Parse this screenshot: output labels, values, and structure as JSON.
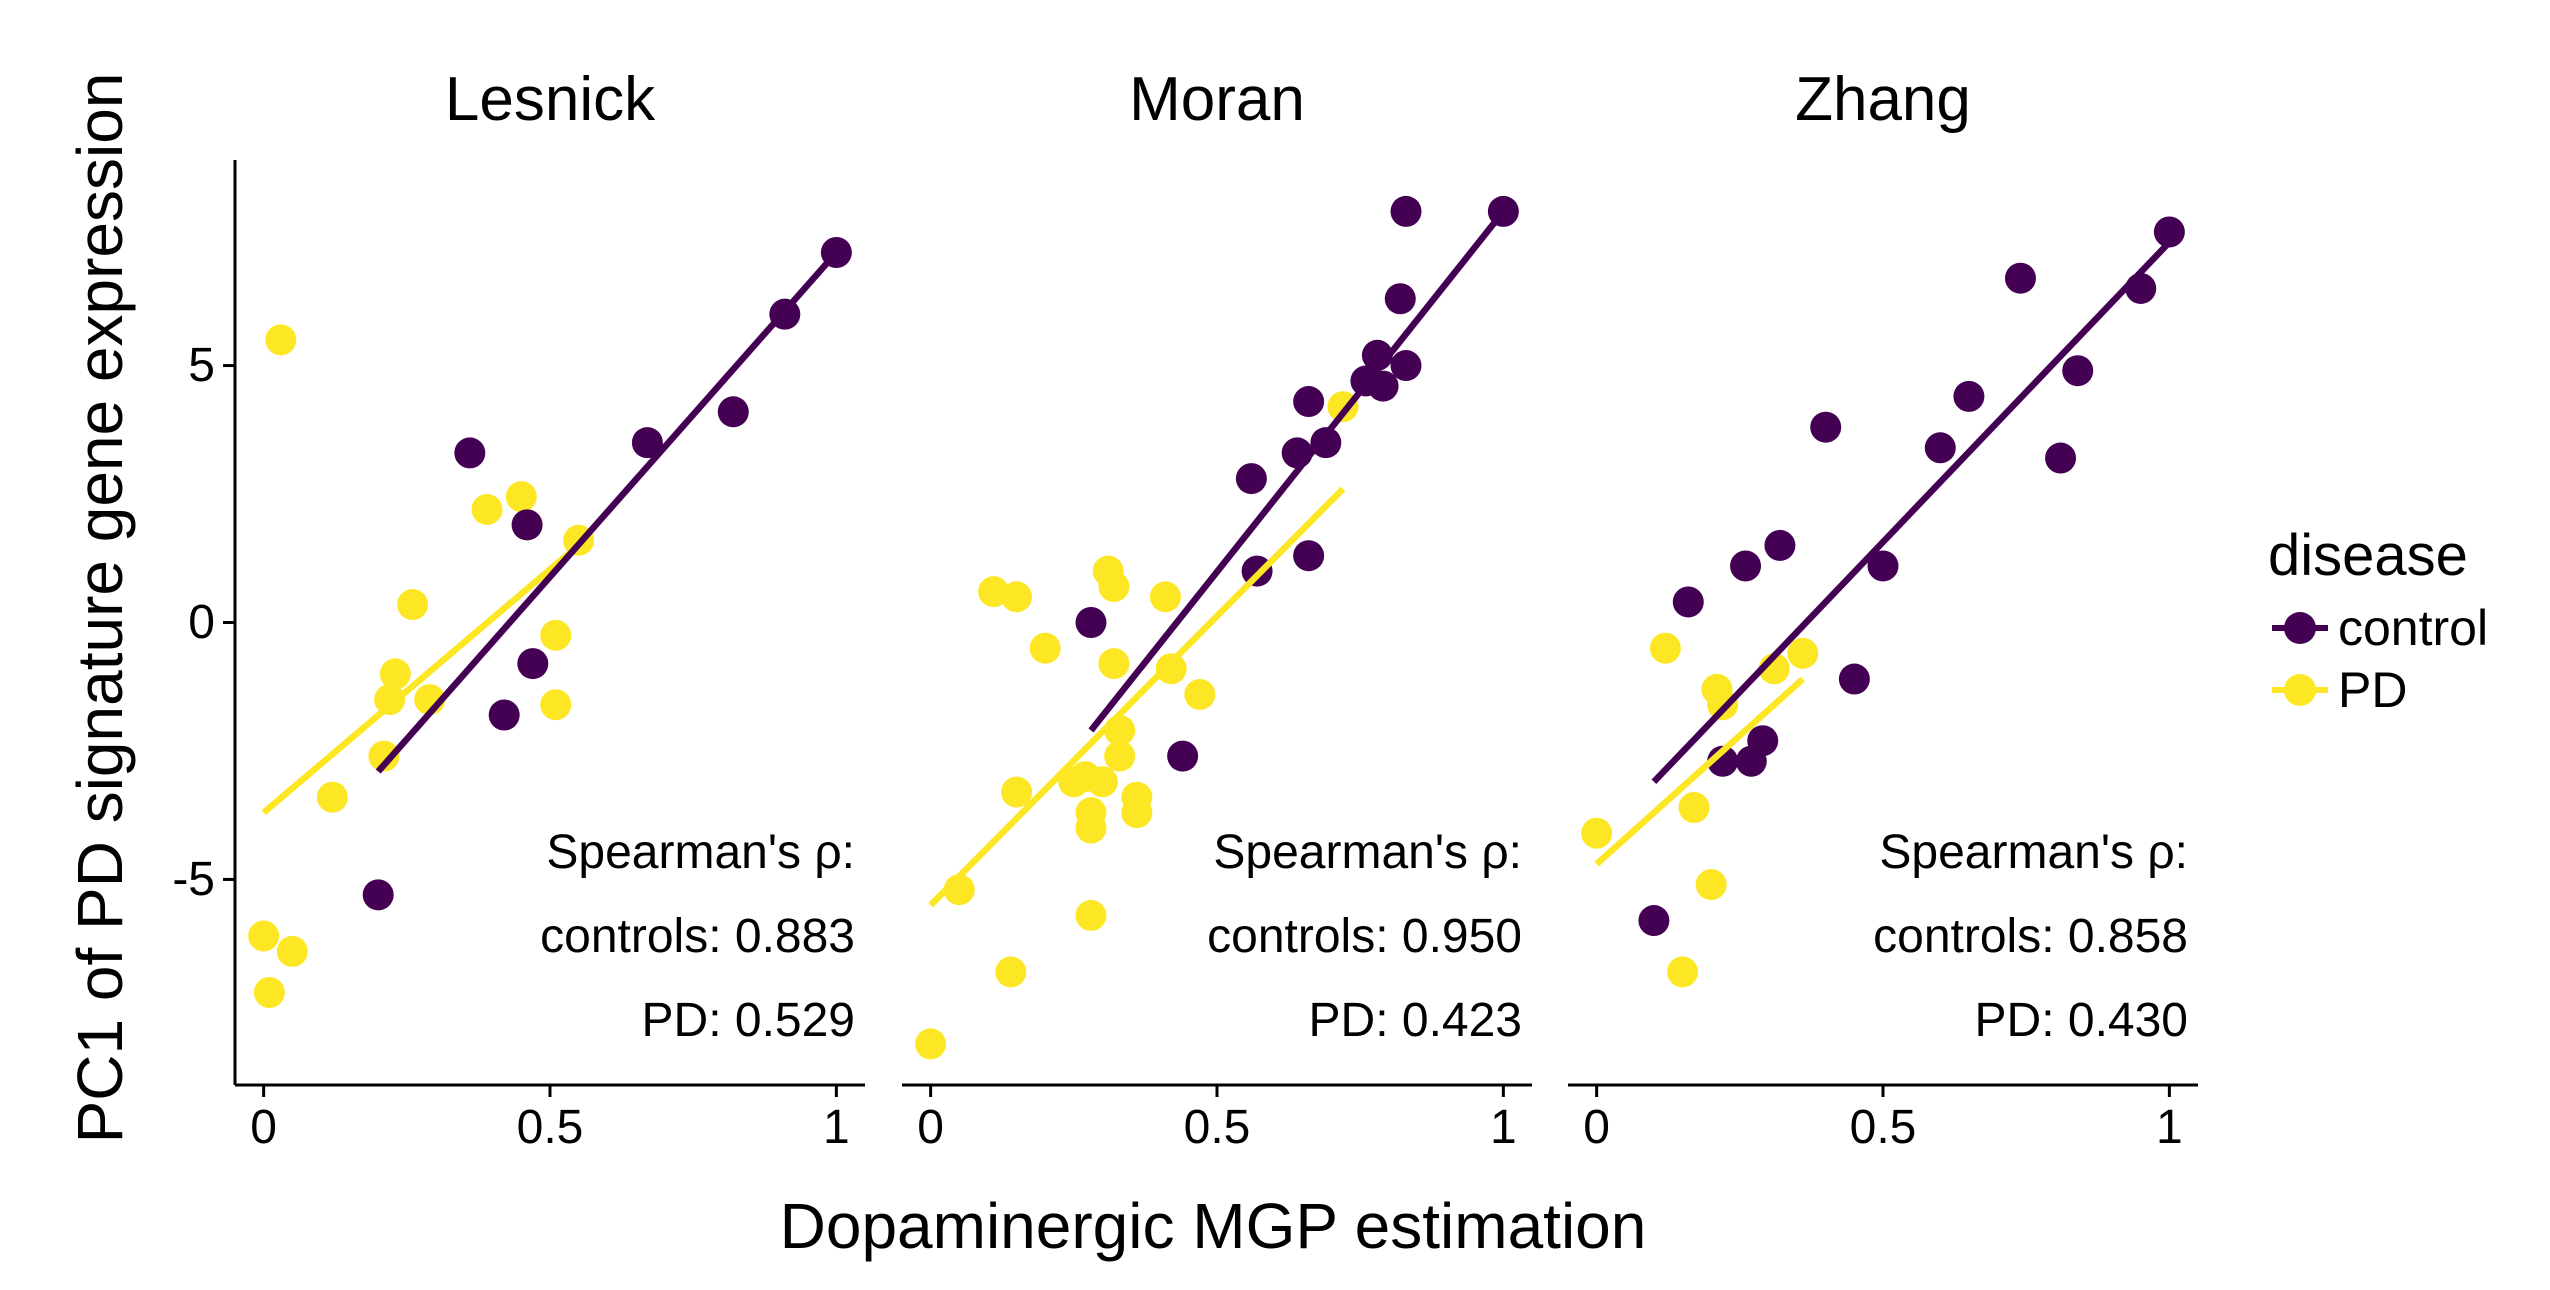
{
  "chart_data": {
    "type": "scatter",
    "xlabel": "Dopaminergic MGP estimation",
    "ylabel": "PC1 of PD signature gene expression",
    "xlim": [
      -0.05,
      1.05
    ],
    "ylim": [
      -9,
      9
    ],
    "x_ticks": [
      {
        "value": 0,
        "label": "0"
      },
      {
        "value": 0.5,
        "label": "0.5"
      },
      {
        "value": 1,
        "label": "1"
      }
    ],
    "y_ticks": [
      {
        "value": -5,
        "label": "-5"
      },
      {
        "value": 0,
        "label": "0"
      },
      {
        "value": 5,
        "label": "5"
      }
    ],
    "grid": false,
    "legend": {
      "title": "disease",
      "placement": "right",
      "entries": [
        {
          "label": "control",
          "color": "#440154"
        },
        {
          "label": "PD",
          "color": "#FDE725"
        }
      ]
    },
    "colors": {
      "control": "#440154",
      "PD": "#FDE725"
    },
    "panels": [
      {
        "title": "Lesnick",
        "stats": {
          "header": "Spearman's ρ:",
          "controls": "controls: 0.883",
          "pd": "PD: 0.529"
        },
        "series": [
          {
            "group": "control",
            "points": [
              [
                0.2,
                -5.3
              ],
              [
                0.36,
                3.3
              ],
              [
                0.42,
                -1.8
              ],
              [
                0.46,
                1.9
              ],
              [
                0.47,
                -0.8
              ],
              [
                0.67,
                3.5
              ],
              [
                0.82,
                4.1
              ],
              [
                0.91,
                6.0
              ],
              [
                1.0,
                7.2
              ]
            ]
          },
          {
            "group": "PD",
            "points": [
              [
                0.0,
                -6.1
              ],
              [
                0.01,
                -7.2
              ],
              [
                0.03,
                5.5
              ],
              [
                0.05,
                -6.4
              ],
              [
                0.12,
                -3.4
              ],
              [
                0.21,
                -2.6
              ],
              [
                0.22,
                -1.5
              ],
              [
                0.23,
                -1.0
              ],
              [
                0.26,
                0.35
              ],
              [
                0.29,
                -1.5
              ],
              [
                0.39,
                2.2
              ],
              [
                0.45,
                2.45
              ],
              [
                0.46,
                1.9
              ],
              [
                0.51,
                -0.25
              ],
              [
                0.51,
                -1.6
              ],
              [
                0.55,
                1.6
              ]
            ]
          }
        ],
        "fits": {
          "control": [
            [
              0.2,
              -2.9
            ],
            [
              1.0,
              7.2
            ]
          ],
          "PD": [
            [
              0.0,
              -3.7
            ],
            [
              0.56,
              1.6
            ]
          ]
        }
      },
      {
        "title": "Moran",
        "stats": {
          "header": "Spearman's ρ:",
          "controls": "controls: 0.950",
          "pd": "PD: 0.423"
        },
        "series": [
          {
            "group": "control",
            "points": [
              [
                0.28,
                0.0
              ],
              [
                0.44,
                -2.6
              ],
              [
                0.56,
                2.8
              ],
              [
                0.57,
                1.0
              ],
              [
                0.64,
                3.3
              ],
              [
                0.66,
                4.3
              ],
              [
                0.66,
                1.3
              ],
              [
                0.69,
                3.5
              ],
              [
                0.76,
                4.7
              ],
              [
                0.78,
                5.2
              ],
              [
                0.79,
                4.6
              ],
              [
                0.82,
                6.3
              ],
              [
                0.83,
                8.0
              ],
              [
                0.83,
                5.0
              ],
              [
                1.0,
                8.0
              ]
            ]
          },
          {
            "group": "PD",
            "points": [
              [
                0.0,
                -8.2
              ],
              [
                0.05,
                -5.2
              ],
              [
                0.11,
                0.6
              ],
              [
                0.15,
                0.5
              ],
              [
                0.15,
                -3.3
              ],
              [
                0.14,
                -6.8
              ],
              [
                0.2,
                -0.5
              ],
              [
                0.25,
                -3.1
              ],
              [
                0.27,
                -3.0
              ],
              [
                0.28,
                -3.7
              ],
              [
                0.28,
                -4.0
              ],
              [
                0.28,
                -5.7
              ],
              [
                0.3,
                -3.1
              ],
              [
                0.31,
                1.0
              ],
              [
                0.32,
                -0.8
              ],
              [
                0.32,
                0.7
              ],
              [
                0.33,
                -2.1
              ],
              [
                0.33,
                -2.6
              ],
              [
                0.36,
                -3.4
              ],
              [
                0.36,
                -3.7
              ],
              [
                0.41,
                0.5
              ],
              [
                0.42,
                -0.9
              ],
              [
                0.47,
                -1.4
              ],
              [
                0.72,
                4.2
              ]
            ]
          }
        ],
        "fits": {
          "control": [
            [
              0.28,
              -2.1
            ],
            [
              1.0,
              8.0
            ]
          ],
          "PD": [
            [
              0.0,
              -5.5
            ],
            [
              0.72,
              2.6
            ]
          ]
        }
      },
      {
        "title": "Zhang",
        "stats": {
          "header": "Spearman's ρ:",
          "controls": "controls: 0.858",
          "pd": "PD: 0.430"
        },
        "series": [
          {
            "group": "control",
            "points": [
              [
                0.1,
                -5.8
              ],
              [
                0.16,
                0.4
              ],
              [
                0.22,
                -2.7
              ],
              [
                0.26,
                1.1
              ],
              [
                0.27,
                -2.7
              ],
              [
                0.29,
                -2.3
              ],
              [
                0.32,
                1.5
              ],
              [
                0.4,
                3.8
              ],
              [
                0.45,
                -1.1
              ],
              [
                0.5,
                1.1
              ],
              [
                0.6,
                3.4
              ],
              [
                0.65,
                4.4
              ],
              [
                0.74,
                6.7
              ],
              [
                0.81,
                3.2
              ],
              [
                0.84,
                4.9
              ],
              [
                0.95,
                6.5
              ],
              [
                1.0,
                7.6
              ]
            ]
          },
          {
            "group": "PD",
            "points": [
              [
                0.0,
                -4.1
              ],
              [
                0.12,
                -0.5
              ],
              [
                0.15,
                -6.8
              ],
              [
                0.17,
                -3.6
              ],
              [
                0.2,
                -5.1
              ],
              [
                0.21,
                -1.3
              ],
              [
                0.22,
                -1.6
              ],
              [
                0.31,
                -0.9
              ],
              [
                0.36,
                -0.6
              ]
            ]
          }
        ],
        "fits": {
          "control": [
            [
              0.1,
              -3.1
            ],
            [
              1.0,
              7.4
            ]
          ],
          "PD": [
            [
              0.0,
              -4.7
            ],
            [
              0.36,
              -1.1
            ]
          ]
        }
      }
    ]
  }
}
